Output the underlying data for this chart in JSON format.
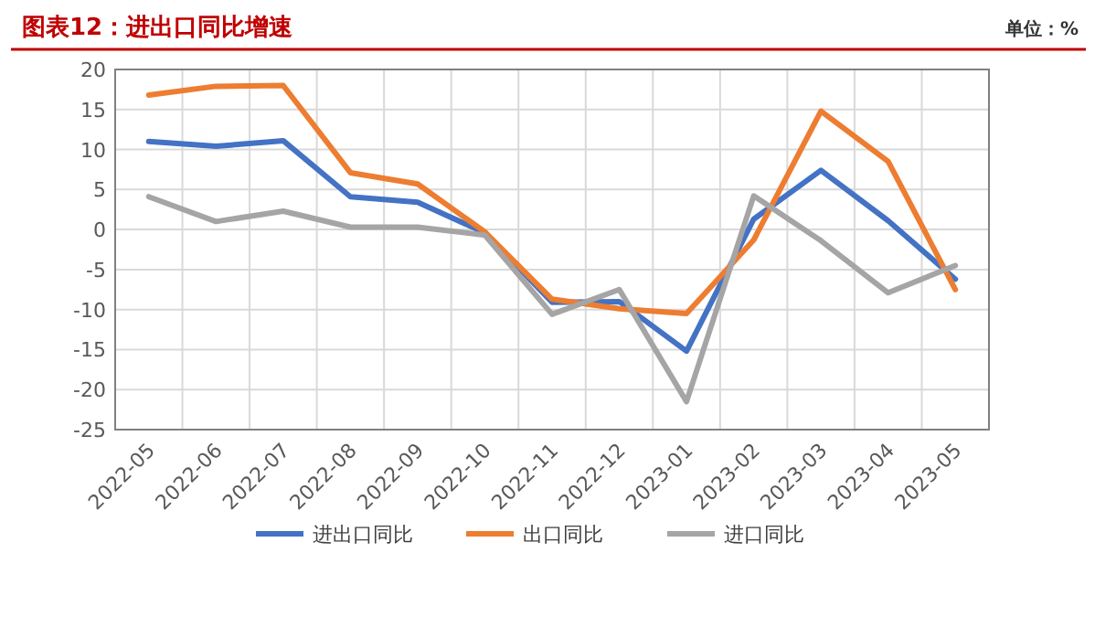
{
  "chart_data": {
    "type": "line",
    "title": "图表12：进出口同比增速",
    "subtitle": "单位：%",
    "categories": [
      "2022-05",
      "2022-06",
      "2022-07",
      "2022-08",
      "2022-09",
      "2022-10",
      "2022-11",
      "2022-12",
      "2023-01",
      "2023-02",
      "2023-03",
      "2023-04",
      "2023-05"
    ],
    "series": [
      {
        "name": "进出口同比",
        "color": "#4472c4",
        "values": [
          11.0,
          10.4,
          11.1,
          4.1,
          3.4,
          -0.4,
          -9.1,
          -9.0,
          -15.2,
          1.3,
          7.4,
          1.1,
          -6.2
        ]
      },
      {
        "name": "出口同比",
        "color": "#ed7d31",
        "values": [
          16.8,
          17.9,
          18.0,
          7.1,
          5.7,
          -0.3,
          -8.7,
          -9.9,
          -10.5,
          -1.3,
          14.8,
          8.5,
          -7.5
        ]
      },
      {
        "name": "进口同比",
        "color": "#a5a5a5",
        "values": [
          4.1,
          1.0,
          2.3,
          0.3,
          0.3,
          -0.7,
          -10.6,
          -7.5,
          -21.5,
          4.2,
          -1.4,
          -7.9,
          -4.5
        ]
      }
    ],
    "ylim": [
      -25,
      20
    ],
    "yticks": [
      -25,
      -20,
      -15,
      -10,
      -5,
      0,
      5,
      10,
      15,
      20
    ],
    "grid": true,
    "legend": "bottom",
    "marker": "none",
    "line_style": "solid"
  }
}
